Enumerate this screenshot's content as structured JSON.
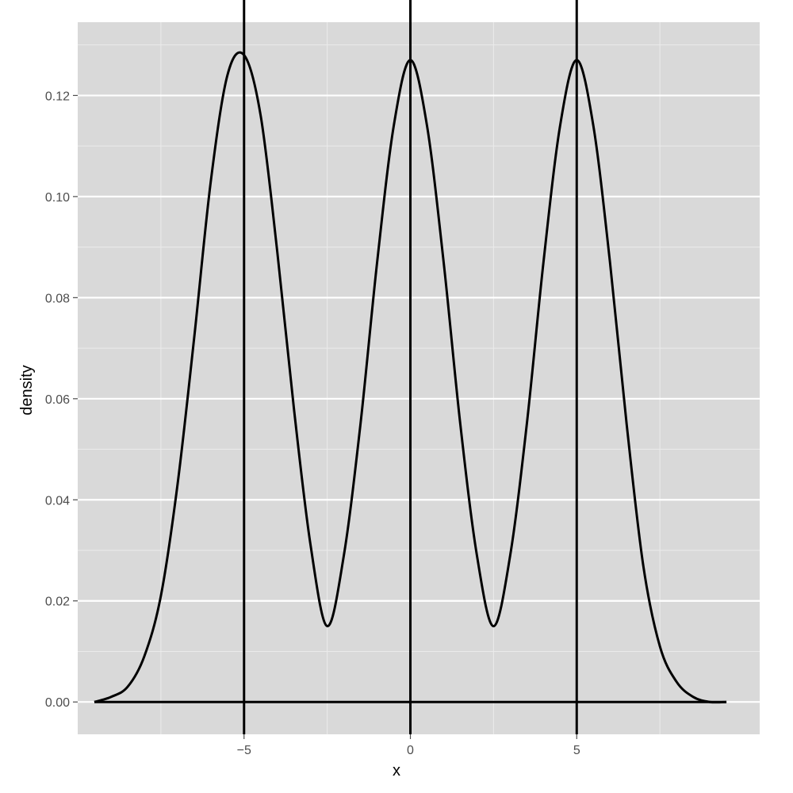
{
  "chart_data": {
    "type": "line",
    "title": "",
    "xlabel": "x",
    "ylabel": "density",
    "xlim": [
      -10.0,
      10.5
    ],
    "ylim": [
      -0.0064,
      0.1345
    ],
    "x_ticks": [
      {
        "value": -5,
        "label": "−5"
      },
      {
        "value": 0,
        "label": "0"
      },
      {
        "value": 5,
        "label": "5"
      }
    ],
    "y_ticks": [
      {
        "value": 0.0,
        "label": "0.00"
      },
      {
        "value": 0.02,
        "label": "0.02"
      },
      {
        "value": 0.04,
        "label": "0.04"
      },
      {
        "value": 0.06,
        "label": "0.06"
      },
      {
        "value": 0.08,
        "label": "0.08"
      },
      {
        "value": 0.1,
        "label": "0.10"
      },
      {
        "value": 0.12,
        "label": "0.12"
      }
    ],
    "grid": true,
    "colors": {
      "panel": "#d9d9d9",
      "grid_major": "#ffffff",
      "grid_minor": "#ebebeb",
      "line": "#000000"
    },
    "series": [
      {
        "x": [
          -9.5,
          -9.0,
          -8.5,
          -8.0,
          -7.5,
          -7.0,
          -6.5,
          -6.0,
          -5.5,
          -5.0,
          -4.5,
          -4.0,
          -3.5,
          -3.0,
          -2.5,
          -2.0,
          -1.5,
          -1.0,
          -0.5,
          0.0,
          0.5,
          1.0,
          1.5,
          2.0,
          2.5,
          3.0,
          3.5,
          4.0,
          4.5,
          5.0,
          5.5,
          6.0,
          6.5,
          7.0,
          7.5,
          8.0,
          8.5,
          9.0,
          9.5
        ],
        "values": [
          0.0,
          0.001,
          0.003,
          0.009,
          0.021,
          0.043,
          0.072,
          0.103,
          0.124,
          0.128,
          0.116,
          0.089,
          0.058,
          0.031,
          0.015,
          0.029,
          0.055,
          0.087,
          0.114,
          0.127,
          0.114,
          0.087,
          0.055,
          0.029,
          0.015,
          0.029,
          0.055,
          0.087,
          0.114,
          0.127,
          0.114,
          0.087,
          0.055,
          0.027,
          0.011,
          0.004,
          0.001,
          0.0,
          0.0
        ]
      }
    ],
    "vlines": [
      -5,
      0,
      5
    ],
    "hlines": [
      0
    ]
  }
}
